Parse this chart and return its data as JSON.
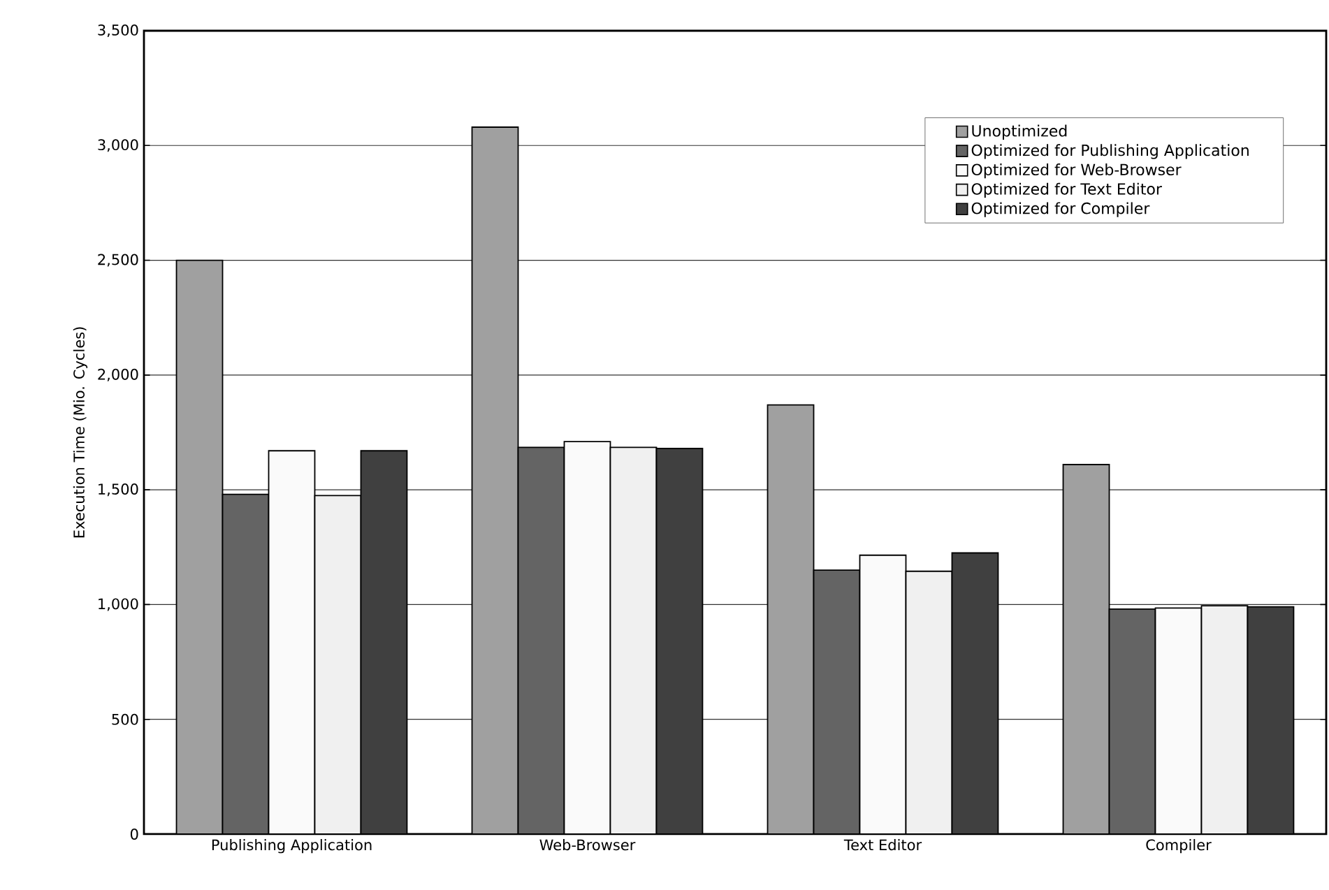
{
  "chart_data": {
    "type": "bar",
    "ylabel": "Execution Time (Mio. Cycles)",
    "categories": [
      "Publishing Application",
      "Web-Browser",
      "Text Editor",
      "Compiler"
    ],
    "series": [
      {
        "name": "Unoptimized",
        "color": "#a0a0a0",
        "values": [
          2500,
          3080,
          1870,
          1610
        ]
      },
      {
        "name": "Optimized for Publishing Application",
        "color": "#646464",
        "values": [
          1480,
          1685,
          1150,
          980
        ]
      },
      {
        "name": "Optimized for Web-Browser",
        "color": "#fafafa",
        "values": [
          1670,
          1710,
          1215,
          985
        ]
      },
      {
        "name": "Optimized for Text Editor",
        "color": "#f0f0f0",
        "values": [
          1475,
          1685,
          1145,
          995
        ]
      },
      {
        "name": "Optimized for Compiler",
        "color": "#404040",
        "values": [
          1670,
          1680,
          1225,
          990
        ]
      }
    ],
    "ylim": [
      0,
      3500
    ],
    "yticks": [
      0,
      500,
      {
        "value": 1000,
        "label": "1,000"
      },
      {
        "value": 1500,
        "label": "1,500"
      },
      {
        "value": 2000,
        "label": "2,000"
      },
      {
        "value": 2500,
        "label": "2,500"
      },
      {
        "value": 3000,
        "label": "3,000"
      },
      {
        "value": 3500,
        "label": "3,500"
      }
    ],
    "grid": "y",
    "legend": "top right"
  }
}
